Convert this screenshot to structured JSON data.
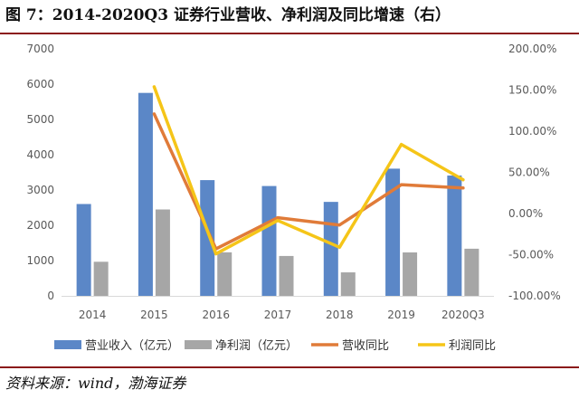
{
  "title": "图 7：2014-2020Q3 证券行业营收、净利润及同比增速（右）",
  "source": "资料来源：wind，渤海证券",
  "colors": {
    "revenue": "#5b87c7",
    "profit": "#a6a6a6",
    "revenue_yoy": "#e07b39",
    "profit_yoy": "#f5c518",
    "rule": "#8b1a1a"
  },
  "chart_data": {
    "type": "bar",
    "title": "",
    "categories": [
      "2014",
      "2015",
      "2016",
      "2017",
      "2018",
      "2019",
      "2020Q3"
    ],
    "series": [
      {
        "name": "营业收入（亿元）",
        "type": "bar",
        "axis": "left",
        "values": [
          2603,
          5752,
          3280,
          3113,
          2663,
          3605,
          3410
        ]
      },
      {
        "name": "净利润（亿元）",
        "type": "bar",
        "axis": "left",
        "values": [
          966,
          2448,
          1234,
          1130,
          666,
          1231,
          1336
        ]
      },
      {
        "name": "营收同比",
        "type": "line",
        "axis": "right",
        "values": [
          null,
          121,
          -43,
          -5,
          -14,
          35,
          31
        ]
      },
      {
        "name": "利润同比",
        "type": "line",
        "axis": "right",
        "values": [
          null,
          154,
          -49,
          -8.5,
          -41,
          84,
          41
        ]
      }
    ],
    "y_left": {
      "min": 0,
      "max": 7000,
      "step": 1000,
      "tick_labels": [
        "0",
        "1000",
        "2000",
        "3000",
        "4000",
        "5000",
        "6000",
        "7000"
      ]
    },
    "y_right": {
      "min": -100,
      "max": 200,
      "step": 50,
      "tick_labels": [
        "-100.00%",
        "-50.00%",
        "0.00%",
        "50.00%",
        "100.00%",
        "150.00%",
        "200.00%"
      ]
    },
    "grid": false,
    "legend_position": "bottom"
  }
}
